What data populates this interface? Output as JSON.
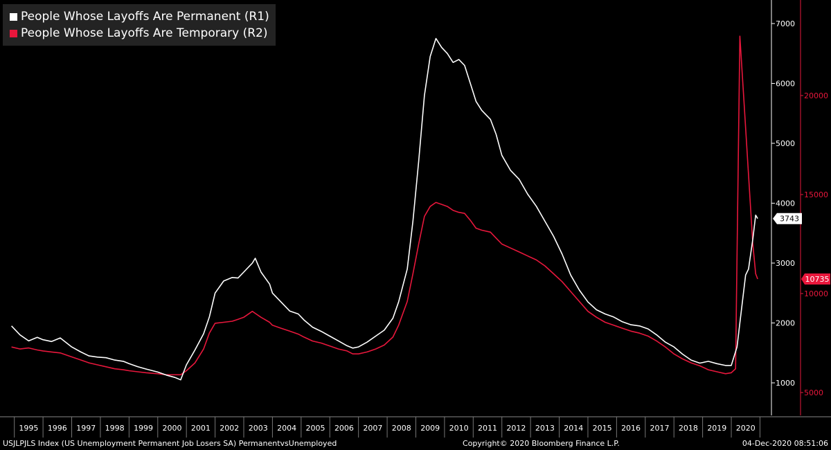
{
  "chart_data": {
    "type": "line",
    "title": "",
    "legend_position": "top-left",
    "grid": false,
    "series": [
      {
        "name": "People Whose Layoffs Are Permanent (R1)",
        "axis": "right1",
        "color": "#ffffff",
        "points": [
          [
            1994.9,
            1950
          ],
          [
            1995.2,
            1800
          ],
          [
            1995.5,
            1700
          ],
          [
            1995.8,
            1760
          ],
          [
            1996.0,
            1720
          ],
          [
            1996.3,
            1690
          ],
          [
            1996.6,
            1750
          ],
          [
            1997.0,
            1600
          ],
          [
            1997.3,
            1520
          ],
          [
            1997.6,
            1450
          ],
          [
            1997.9,
            1430
          ],
          [
            1998.2,
            1420
          ],
          [
            1998.5,
            1380
          ],
          [
            1998.8,
            1360
          ],
          [
            1999.0,
            1320
          ],
          [
            1999.3,
            1270
          ],
          [
            1999.6,
            1230
          ],
          [
            2000.0,
            1180
          ],
          [
            2000.3,
            1130
          ],
          [
            2000.6,
            1090
          ],
          [
            2000.8,
            1050
          ],
          [
            2001.0,
            1300
          ],
          [
            2001.3,
            1550
          ],
          [
            2001.6,
            1820
          ],
          [
            2001.8,
            2100
          ],
          [
            2002.0,
            2500
          ],
          [
            2002.3,
            2700
          ],
          [
            2002.6,
            2760
          ],
          [
            2002.8,
            2750
          ],
          [
            2003.0,
            2850
          ],
          [
            2003.3,
            3000
          ],
          [
            2003.4,
            3080
          ],
          [
            2003.6,
            2850
          ],
          [
            2003.9,
            2650
          ],
          [
            2004.0,
            2500
          ],
          [
            2004.3,
            2350
          ],
          [
            2004.6,
            2200
          ],
          [
            2004.9,
            2150
          ],
          [
            2005.1,
            2050
          ],
          [
            2005.4,
            1930
          ],
          [
            2005.7,
            1860
          ],
          [
            2006.0,
            1780
          ],
          [
            2006.3,
            1700
          ],
          [
            2006.6,
            1620
          ],
          [
            2006.8,
            1580
          ],
          [
            2007.0,
            1600
          ],
          [
            2007.3,
            1680
          ],
          [
            2007.6,
            1780
          ],
          [
            2007.9,
            1880
          ],
          [
            2008.2,
            2080
          ],
          [
            2008.4,
            2350
          ],
          [
            2008.7,
            2900
          ],
          [
            2008.9,
            3700
          ],
          [
            2009.1,
            4700
          ],
          [
            2009.3,
            5800
          ],
          [
            2009.5,
            6450
          ],
          [
            2009.7,
            6750
          ],
          [
            2009.9,
            6600
          ],
          [
            2010.1,
            6500
          ],
          [
            2010.3,
            6350
          ],
          [
            2010.5,
            6400
          ],
          [
            2010.7,
            6300
          ],
          [
            2010.9,
            6000
          ],
          [
            2011.1,
            5700
          ],
          [
            2011.3,
            5550
          ],
          [
            2011.6,
            5400
          ],
          [
            2011.8,
            5150
          ],
          [
            2012.0,
            4800
          ],
          [
            2012.3,
            4550
          ],
          [
            2012.6,
            4400
          ],
          [
            2012.9,
            4150
          ],
          [
            2013.2,
            3950
          ],
          [
            2013.5,
            3700
          ],
          [
            2013.8,
            3450
          ],
          [
            2014.1,
            3150
          ],
          [
            2014.4,
            2800
          ],
          [
            2014.7,
            2550
          ],
          [
            2015.0,
            2350
          ],
          [
            2015.3,
            2220
          ],
          [
            2015.6,
            2150
          ],
          [
            2015.9,
            2100
          ],
          [
            2016.2,
            2020
          ],
          [
            2016.5,
            1970
          ],
          [
            2016.8,
            1950
          ],
          [
            2017.1,
            1900
          ],
          [
            2017.4,
            1800
          ],
          [
            2017.7,
            1680
          ],
          [
            2018.0,
            1600
          ],
          [
            2018.3,
            1480
          ],
          [
            2018.6,
            1380
          ],
          [
            2018.9,
            1330
          ],
          [
            2019.2,
            1360
          ],
          [
            2019.5,
            1320
          ],
          [
            2019.8,
            1290
          ],
          [
            2020.0,
            1290
          ],
          [
            2020.2,
            1600
          ],
          [
            2020.3,
            2000
          ],
          [
            2020.5,
            2800
          ],
          [
            2020.6,
            2900
          ],
          [
            2020.75,
            3400
          ],
          [
            2020.85,
            3800
          ],
          [
            2020.92,
            3743
          ]
        ]
      },
      {
        "name": "People Whose Layoffs Are Temporary (R2)",
        "axis": "right2",
        "color": "#e8173c",
        "points": [
          [
            1994.9,
            7300
          ],
          [
            1995.2,
            7200
          ],
          [
            1995.5,
            7250
          ],
          [
            1995.8,
            7150
          ],
          [
            1996.0,
            7100
          ],
          [
            1996.3,
            7050
          ],
          [
            1996.6,
            7000
          ],
          [
            1997.0,
            6800
          ],
          [
            1997.3,
            6650
          ],
          [
            1997.6,
            6500
          ],
          [
            1997.9,
            6400
          ],
          [
            1998.2,
            6300
          ],
          [
            1998.5,
            6200
          ],
          [
            1998.8,
            6150
          ],
          [
            1999.0,
            6100
          ],
          [
            1999.3,
            6050
          ],
          [
            1999.6,
            6000
          ],
          [
            2000.0,
            5950
          ],
          [
            2000.3,
            5900
          ],
          [
            2000.6,
            5900
          ],
          [
            2000.8,
            5900
          ],
          [
            2001.0,
            6100
          ],
          [
            2001.3,
            6500
          ],
          [
            2001.6,
            7200
          ],
          [
            2001.8,
            8000
          ],
          [
            2002.0,
            8500
          ],
          [
            2002.3,
            8550
          ],
          [
            2002.6,
            8600
          ],
          [
            2002.8,
            8700
          ],
          [
            2003.0,
            8800
          ],
          [
            2003.3,
            9100
          ],
          [
            2003.4,
            9000
          ],
          [
            2003.6,
            8800
          ],
          [
            2003.9,
            8550
          ],
          [
            2004.0,
            8400
          ],
          [
            2004.3,
            8250
          ],
          [
            2004.6,
            8100
          ],
          [
            2004.9,
            7950
          ],
          [
            2005.1,
            7800
          ],
          [
            2005.4,
            7600
          ],
          [
            2005.7,
            7500
          ],
          [
            2006.0,
            7350
          ],
          [
            2006.3,
            7200
          ],
          [
            2006.6,
            7100
          ],
          [
            2006.8,
            6950
          ],
          [
            2007.0,
            6950
          ],
          [
            2007.3,
            7050
          ],
          [
            2007.6,
            7200
          ],
          [
            2007.9,
            7400
          ],
          [
            2008.2,
            7800
          ],
          [
            2008.4,
            8400
          ],
          [
            2008.7,
            9600
          ],
          [
            2008.9,
            11000
          ],
          [
            2009.1,
            12500
          ],
          [
            2009.3,
            13900
          ],
          [
            2009.5,
            14400
          ],
          [
            2009.7,
            14600
          ],
          [
            2009.9,
            14500
          ],
          [
            2010.1,
            14400
          ],
          [
            2010.3,
            14200
          ],
          [
            2010.5,
            14100
          ],
          [
            2010.7,
            14050
          ],
          [
            2010.9,
            13700
          ],
          [
            2011.1,
            13300
          ],
          [
            2011.3,
            13200
          ],
          [
            2011.6,
            13100
          ],
          [
            2011.8,
            12800
          ],
          [
            2012.0,
            12500
          ],
          [
            2012.3,
            12300
          ],
          [
            2012.6,
            12100
          ],
          [
            2012.9,
            11900
          ],
          [
            2013.2,
            11700
          ],
          [
            2013.5,
            11400
          ],
          [
            2013.8,
            11000
          ],
          [
            2014.1,
            10600
          ],
          [
            2014.4,
            10100
          ],
          [
            2014.7,
            9600
          ],
          [
            2015.0,
            9100
          ],
          [
            2015.3,
            8800
          ],
          [
            2015.6,
            8550
          ],
          [
            2015.9,
            8400
          ],
          [
            2016.2,
            8250
          ],
          [
            2016.5,
            8100
          ],
          [
            2016.8,
            8000
          ],
          [
            2017.1,
            7850
          ],
          [
            2017.4,
            7600
          ],
          [
            2017.7,
            7300
          ],
          [
            2018.0,
            6950
          ],
          [
            2018.3,
            6700
          ],
          [
            2018.6,
            6500
          ],
          [
            2018.9,
            6350
          ],
          [
            2019.2,
            6150
          ],
          [
            2019.5,
            6050
          ],
          [
            2019.8,
            5950
          ],
          [
            2020.0,
            6000
          ],
          [
            2020.15,
            6200
          ],
          [
            2020.3,
            23000
          ],
          [
            2020.45,
            19500
          ],
          [
            2020.6,
            16000
          ],
          [
            2020.75,
            12500
          ],
          [
            2020.85,
            11000
          ],
          [
            2020.92,
            10735
          ]
        ]
      }
    ],
    "x": {
      "range": [
        1994.5,
        2021.4
      ],
      "tick_labels": [
        "1995",
        "1996",
        "1997",
        "1998",
        "1999",
        "2000",
        "2001",
        "2002",
        "2003",
        "2004",
        "2005",
        "2006",
        "2007",
        "2008",
        "2009",
        "2010",
        "2011",
        "2012",
        "2013",
        "2014",
        "2015",
        "2016",
        "2017",
        "2018",
        "2019",
        "2020"
      ]
    },
    "y_right1": {
      "range": [
        400,
        7400
      ],
      "ticks": [
        "1000",
        "2000",
        "3000",
        "4000",
        "5000",
        "6000",
        "7000"
      ],
      "last_value_label": "3743"
    },
    "y_right2": {
      "range": [
        4000,
        25000
      ],
      "ticks": [
        "5000",
        "10000",
        "15000",
        "20000"
      ],
      "last_value_label": "10735"
    }
  },
  "footer": {
    "left": "USJLPJLS Index (US Unemployment Permanent Job Losers SA) PermanentvsUnemployed",
    "center": "Copyright© 2020 Bloomberg Finance L.P.",
    "right": "04-Dec-2020  08:51:06"
  }
}
